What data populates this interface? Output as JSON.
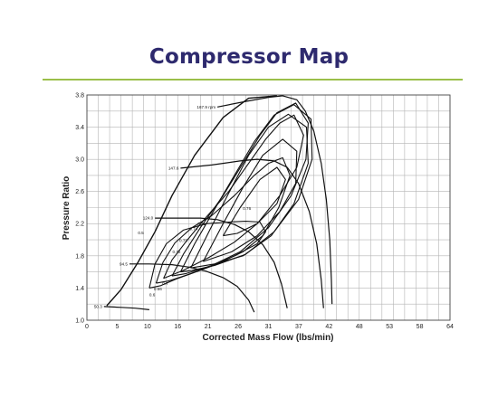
{
  "slide": {
    "title": "Compressor Map"
  },
  "accent_color": "#9bbf4a",
  "title_color": "#2e2a6e",
  "chart_data": {
    "type": "line",
    "title": "",
    "xlabel": "Corrected Mass Flow (lbs/min)",
    "ylabel": "Pressure Ratio",
    "x_ticks": [
      "0",
      "5",
      "10",
      "16",
      "21",
      "26",
      "31",
      "37",
      "42",
      "48",
      "53",
      "58",
      "64"
    ],
    "y_ticks": [
      "1.0",
      "1.4",
      "1.8",
      "2.2",
      "2.6",
      "3.0",
      "3.4",
      "3.8"
    ],
    "xlim": [
      0,
      64
    ],
    "ylim": [
      1.0,
      3.8
    ],
    "grid": true,
    "speed_lines": [
      {
        "label": "50.3",
        "points": [
          [
            3.0,
            1.17
          ],
          [
            6.0,
            1.16
          ],
          [
            8.5,
            1.15
          ],
          [
            11.0,
            1.13
          ]
        ]
      },
      {
        "label": "94.5",
        "points": [
          [
            7.5,
            1.7
          ],
          [
            11,
            1.7
          ],
          [
            15,
            1.69
          ],
          [
            18,
            1.66
          ],
          [
            21,
            1.61
          ],
          [
            24,
            1.53
          ],
          [
            26.5,
            1.42
          ],
          [
            28.5,
            1.25
          ],
          [
            29.5,
            1.1
          ]
        ]
      },
      {
        "label": "124.0",
        "points": [
          [
            12.0,
            2.27
          ],
          [
            16,
            2.27
          ],
          [
            20,
            2.27
          ],
          [
            23,
            2.25
          ],
          [
            26,
            2.19
          ],
          [
            28.5,
            2.1
          ],
          [
            31,
            1.94
          ],
          [
            33,
            1.72
          ],
          [
            34.3,
            1.45
          ],
          [
            35.3,
            1.15
          ]
        ]
      },
      {
        "label": "147.6",
        "points": [
          [
            16.5,
            2.89
          ],
          [
            22,
            2.93
          ],
          [
            27,
            2.98
          ],
          [
            30,
            3.0
          ],
          [
            33,
            2.98
          ],
          [
            35.3,
            2.9
          ],
          [
            37.3,
            2.7
          ],
          [
            39.2,
            2.35
          ],
          [
            40.5,
            1.95
          ],
          [
            41.3,
            1.5
          ],
          [
            41.7,
            1.15
          ]
        ]
      },
      {
        "label": "167.9 rpm",
        "points": [
          [
            23,
            3.65
          ],
          [
            28,
            3.72
          ],
          [
            32,
            3.77
          ],
          [
            34.5,
            3.79
          ],
          [
            37,
            3.74
          ],
          [
            38.5,
            3.6
          ],
          [
            40,
            3.35
          ],
          [
            41.3,
            2.95
          ],
          [
            42.2,
            2.5
          ],
          [
            42.8,
            2.0
          ],
          [
            43.1,
            1.5
          ],
          [
            43.2,
            1.2
          ]
        ]
      }
    ],
    "surge_line": [
      [
        3.5,
        1.18
      ],
      [
        6,
        1.38
      ],
      [
        9,
        1.72
      ],
      [
        12,
        2.1
      ],
      [
        15,
        2.55
      ],
      [
        19,
        3.05
      ],
      [
        24,
        3.52
      ],
      [
        28.5,
        3.76
      ],
      [
        33.5,
        3.79
      ]
    ],
    "efficiency_islands": [
      {
        "label": "0.6",
        "points": [
          [
            11,
            1.4
          ],
          [
            12,
            1.7
          ],
          [
            14,
            1.95
          ],
          [
            17,
            2.12
          ],
          [
            21,
            2.2
          ],
          [
            25,
            2.22
          ],
          [
            28,
            2.23
          ],
          [
            30.5,
            2.22
          ],
          [
            31.5,
            2.1
          ],
          [
            30,
            1.95
          ],
          [
            26,
            1.8
          ],
          [
            21,
            1.65
          ],
          [
            16,
            1.52
          ],
          [
            13,
            1.43
          ],
          [
            11,
            1.4
          ]
        ]
      },
      {
        "label": "0.66",
        "points": [
          [
            12.2,
            1.46
          ],
          [
            13.4,
            1.72
          ],
          [
            15.5,
            1.96
          ],
          [
            18.5,
            2.15
          ],
          [
            22,
            2.3
          ],
          [
            26,
            2.55
          ],
          [
            29.5,
            2.8
          ],
          [
            32,
            2.95
          ],
          [
            34.5,
            3.02
          ],
          [
            35.8,
            2.8
          ],
          [
            33.8,
            2.4
          ],
          [
            31,
            2.05
          ],
          [
            27.5,
            1.85
          ],
          [
            23,
            1.7
          ],
          [
            18,
            1.57
          ],
          [
            14.5,
            1.49
          ],
          [
            12.2,
            1.46
          ]
        ]
      },
      {
        "label": "0.7",
        "points": [
          [
            13.5,
            1.52
          ],
          [
            15.0,
            1.75
          ],
          [
            17.5,
            1.98
          ],
          [
            21,
            2.28
          ],
          [
            25,
            2.6
          ],
          [
            28.5,
            2.95
          ],
          [
            31.5,
            3.25
          ],
          [
            34,
            3.45
          ],
          [
            36.5,
            3.55
          ],
          [
            38.2,
            3.3
          ],
          [
            37,
            2.9
          ],
          [
            34,
            2.55
          ],
          [
            30,
            2.2
          ],
          [
            26,
            1.97
          ],
          [
            21.5,
            1.78
          ],
          [
            17,
            1.62
          ],
          [
            13.5,
            1.52
          ]
        ]
      },
      {
        "label": "0.72",
        "points": [
          [
            15.0,
            1.55
          ],
          [
            17,
            1.82
          ],
          [
            20,
            2.15
          ],
          [
            24,
            2.55
          ],
          [
            27.5,
            2.95
          ],
          [
            30.5,
            3.3
          ],
          [
            33.5,
            3.58
          ],
          [
            36.8,
            3.7
          ],
          [
            39,
            3.45
          ],
          [
            38.6,
            3.0
          ],
          [
            36,
            2.55
          ],
          [
            32,
            2.15
          ],
          [
            27,
            1.85
          ],
          [
            22,
            1.68
          ],
          [
            17.5,
            1.58
          ],
          [
            15.0,
            1.55
          ]
        ]
      },
      {
        "label": "0.73",
        "points": [
          [
            16.5,
            1.6
          ],
          [
            19,
            1.95
          ],
          [
            22.5,
            2.38
          ],
          [
            26,
            2.8
          ],
          [
            29.5,
            3.22
          ],
          [
            33,
            3.55
          ],
          [
            36.5,
            3.68
          ],
          [
            39.5,
            3.5
          ],
          [
            39.7,
            3.0
          ],
          [
            37.3,
            2.5
          ],
          [
            33,
            2.1
          ],
          [
            28,
            1.82
          ],
          [
            22.5,
            1.68
          ],
          [
            18.5,
            1.62
          ],
          [
            16.5,
            1.6
          ]
        ]
      },
      {
        "label": "0.74",
        "points": [
          [
            18.3,
            1.65
          ],
          [
            21.5,
            2.1
          ],
          [
            25,
            2.58
          ],
          [
            28.5,
            3.05
          ],
          [
            32,
            3.4
          ],
          [
            35.5,
            3.56
          ],
          [
            38.7,
            3.4
          ],
          [
            39,
            2.95
          ],
          [
            36.5,
            2.45
          ],
          [
            32.5,
            2.05
          ],
          [
            27.5,
            1.8
          ],
          [
            22.5,
            1.7
          ],
          [
            18.3,
            1.65
          ]
        ]
      },
      {
        "label": "0.75",
        "points": [
          [
            20.5,
            1.73
          ],
          [
            24,
            2.2
          ],
          [
            27.5,
            2.65
          ],
          [
            31,
            3.05
          ],
          [
            34.5,
            3.25
          ],
          [
            37,
            3.1
          ],
          [
            36.8,
            2.7
          ],
          [
            34,
            2.35
          ],
          [
            30,
            2.05
          ],
          [
            25.5,
            1.85
          ],
          [
            20.5,
            1.73
          ]
        ]
      },
      {
        "label": "0.76",
        "points": [
          [
            24,
            2.05
          ],
          [
            27,
            2.4
          ],
          [
            30.5,
            2.75
          ],
          [
            33.5,
            2.9
          ],
          [
            35,
            2.75
          ],
          [
            33.5,
            2.45
          ],
          [
            30,
            2.2
          ],
          [
            26.5,
            2.08
          ],
          [
            24,
            2.05
          ]
        ]
      }
    ],
    "annotations": [
      {
        "text": "0.5",
        "x": 9.5,
        "y": 2.07
      },
      {
        "text": "0.6",
        "x": 11.5,
        "y": 1.3
      },
      {
        "text": "0.66",
        "x": 12.5,
        "y": 1.37
      },
      {
        "text": "0.7",
        "x": 13.8,
        "y": 1.44
      },
      {
        "text": "0.72",
        "x": 15.8,
        "y": 1.83
      },
      {
        "text": "0.73",
        "x": 17.0,
        "y": 1.97
      },
      {
        "text": "0.74",
        "x": 18.8,
        "y": 2.12
      },
      {
        "text": "0.75",
        "x": 20.2,
        "y": 2.18
      },
      {
        "text": "0.76",
        "x": 28.2,
        "y": 2.37
      }
    ]
  }
}
